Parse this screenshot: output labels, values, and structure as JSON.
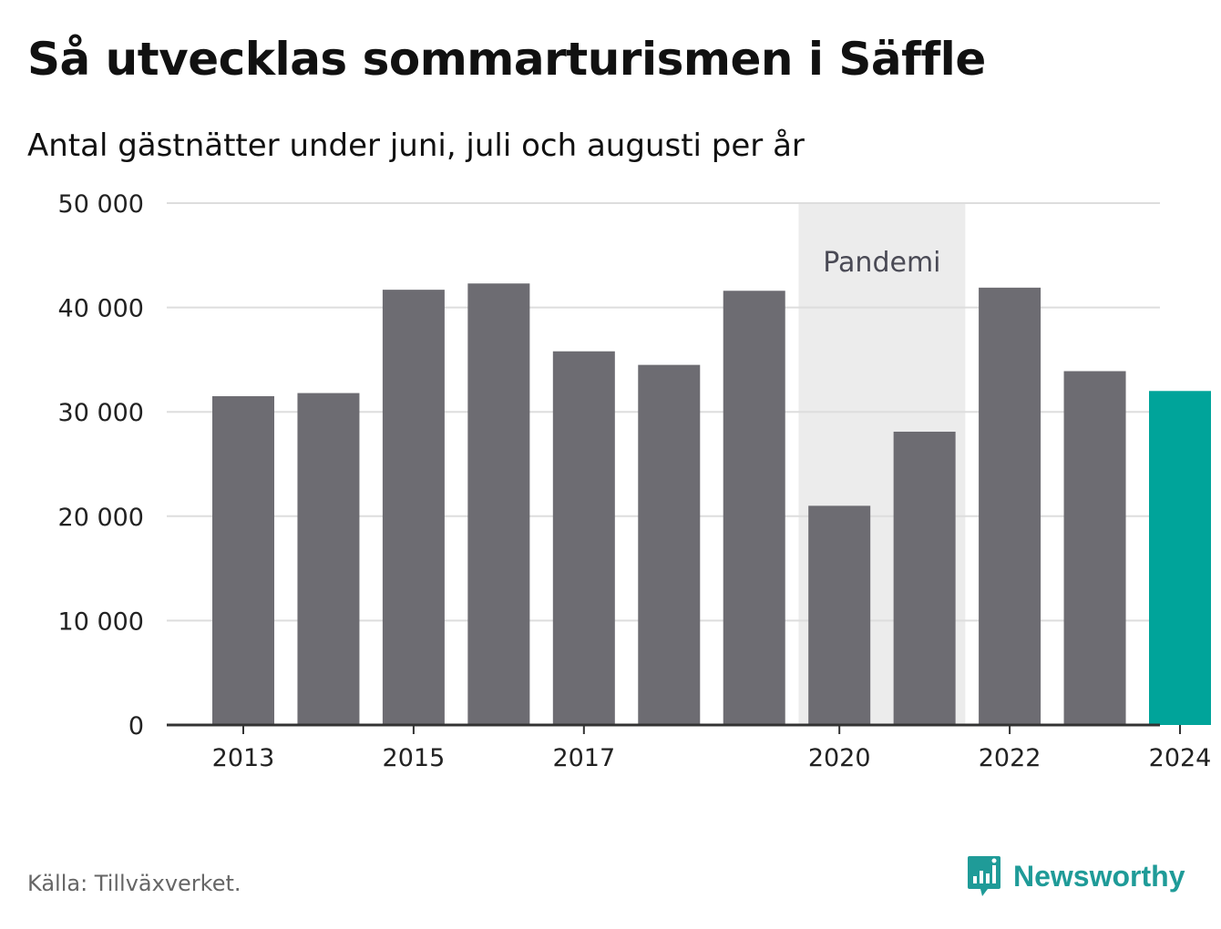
{
  "title": "Så utvecklas sommarturismen i Säffle",
  "subtitle": "Antal gästnätter under juni, juli och augusti per år",
  "source": "Källa: Tillväxverket.",
  "brand": {
    "name": "Newsworthy",
    "icon": "newsworthy-logo-icon",
    "color": "#1f9b98"
  },
  "chart_data": {
    "type": "bar",
    "categories": [
      "2013",
      "2014",
      "2015",
      "2016",
      "2017",
      "2018",
      "2019",
      "2020",
      "2021",
      "2022",
      "2023",
      "2024"
    ],
    "values": [
      31500,
      31800,
      41700,
      42300,
      35800,
      34500,
      41600,
      21000,
      28100,
      41900,
      33900,
      32000
    ],
    "x_tick_labels": [
      "2013",
      "2015",
      "2017",
      "2020",
      "2022",
      "2024"
    ],
    "y_ticks": [
      "0",
      "10 000",
      "20 000",
      "30 000",
      "40 000",
      "50 000"
    ],
    "ylim": [
      0,
      50000
    ],
    "xlabel": "",
    "ylabel": "",
    "grid": true,
    "colors": {
      "bar": "#6d6c72",
      "highlight": "#00a49a",
      "highlight_category": "2024",
      "annotation_band": "#ececec"
    },
    "annotation": {
      "label": "Pandemi",
      "from": "2020",
      "to": "2021"
    }
  }
}
